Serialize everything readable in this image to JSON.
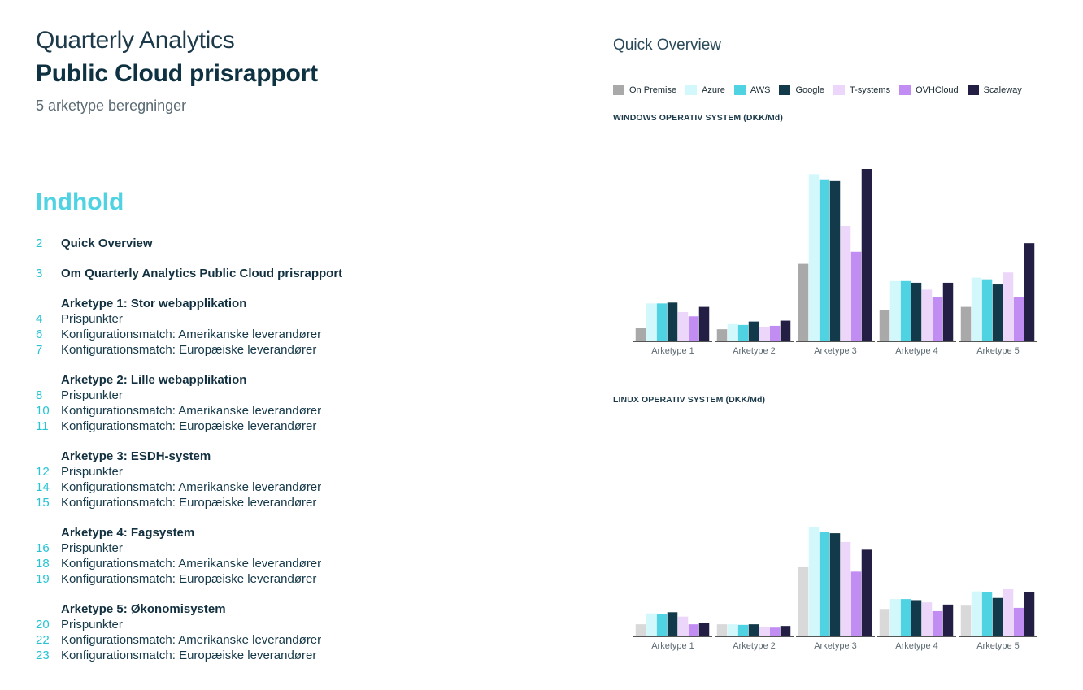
{
  "header": {
    "line1": "Quarterly Analytics",
    "line2": "Public Cloud prisrapport",
    "line3": "5 arketype beregninger"
  },
  "toc": {
    "title": "Indhold",
    "rows": [
      {
        "num": "2",
        "label": "Quick Overview",
        "bold": true,
        "gap": 0
      },
      {
        "num": "3",
        "label": "Om Quarterly Analytics Public Cloud prisrapport",
        "bold": true,
        "gap": 18
      },
      {
        "num": "",
        "label": "Arketype 1: Stor webapplikation",
        "bold": true,
        "gap": 18
      },
      {
        "num": "4",
        "label": "Prispunkter",
        "bold": false,
        "gap": 0
      },
      {
        "num": "6",
        "label": "Konfigurationsmatch: Amerikanske leverandører",
        "bold": false,
        "gap": 0
      },
      {
        "num": "7",
        "label": "Konfigurationsmatch: Europæiske leverandører",
        "bold": false,
        "gap": 0
      },
      {
        "num": "",
        "label": "Arketype 2: Lille webapplikation",
        "bold": true,
        "gap": 18
      },
      {
        "num": "8",
        "label": "Prispunkter",
        "bold": false,
        "gap": 0
      },
      {
        "num": "10",
        "label": "Konfigurationsmatch: Amerikanske leverandører",
        "bold": false,
        "gap": 0
      },
      {
        "num": "11",
        "label": "Konfigurationsmatch: Europæiske leverandører",
        "bold": false,
        "gap": 0
      },
      {
        "num": "",
        "label": "Arketype 3: ESDH-system",
        "bold": true,
        "gap": 18
      },
      {
        "num": "12",
        "label": "Prispunkter",
        "bold": false,
        "gap": 0
      },
      {
        "num": "14",
        "label": "Konfigurationsmatch: Amerikanske leverandører",
        "bold": false,
        "gap": 0
      },
      {
        "num": "15",
        "label": "Konfigurationsmatch: Europæiske leverandører",
        "bold": false,
        "gap": 0
      },
      {
        "num": "",
        "label": "Arketype 4: Fagsystem",
        "bold": true,
        "gap": 18
      },
      {
        "num": "16",
        "label": "Prispunkter",
        "bold": false,
        "gap": 0
      },
      {
        "num": "18",
        "label": "Konfigurationsmatch: Amerikanske leverandører",
        "bold": false,
        "gap": 0
      },
      {
        "num": "19",
        "label": "Konfigurationsmatch: Europæiske leverandører",
        "bold": false,
        "gap": 0
      },
      {
        "num": "",
        "label": "Arketype 5: Økonomisystem",
        "bold": true,
        "gap": 18
      },
      {
        "num": "20",
        "label": "Prispunkter",
        "bold": false,
        "gap": 0
      },
      {
        "num": "22",
        "label": "Konfigurationsmatch: Amerikanske leverandører",
        "bold": false,
        "gap": 0
      },
      {
        "num": "23",
        "label": "Konfigurationsmatch: Europæiske leverandører",
        "bold": false,
        "gap": 0
      }
    ]
  },
  "overview": {
    "title": "Quick Overview",
    "legend": [
      {
        "name": "On Premise",
        "color": "#a9a9a9"
      },
      {
        "name": "Azure",
        "color": "#d3f8fb"
      },
      {
        "name": "AWS",
        "color": "#4fd3e3"
      },
      {
        "name": "Google",
        "color": "#133a4a"
      },
      {
        "name": "T-systems",
        "color": "#ecd6fa"
      },
      {
        "name": "OVHCloud",
        "color": "#c28df2"
      },
      {
        "name": "Scaleway",
        "color": "#231e43"
      }
    ]
  },
  "chart_data": [
    {
      "type": "bar",
      "title": "WINDOWS OPERATIV SYSTEM (DKK/Md)",
      "categories": [
        "Arketype 1",
        "Arketype 2",
        "Arketype 3",
        "Arketype 4",
        "Arketype 5"
      ],
      "ylim": [
        0,
        100
      ],
      "series": [
        {
          "name": "On Premise",
          "color": "#a9a9a9",
          "values": [
            8,
            7,
            45,
            18,
            20
          ]
        },
        {
          "name": "Azure",
          "color": "#d3f8fb",
          "values": [
            22,
            10,
            97,
            35,
            37
          ]
        },
        {
          "name": "AWS",
          "color": "#4fd3e3",
          "values": [
            22,
            9.5,
            94,
            35,
            36
          ]
        },
        {
          "name": "Google",
          "color": "#133a4a",
          "values": [
            22.5,
            11.5,
            93,
            34,
            33
          ]
        },
        {
          "name": "T-systems",
          "color": "#ecd6fa",
          "values": [
            17,
            8.5,
            67,
            30,
            40
          ]
        },
        {
          "name": "OVHCloud",
          "color": "#c28df2",
          "values": [
            14.5,
            9,
            52,
            25.5,
            25.5
          ]
        },
        {
          "name": "Scaleway",
          "color": "#231e43",
          "values": [
            20,
            12,
            100,
            34,
            57
          ]
        }
      ]
    },
    {
      "type": "bar",
      "title": "LINUX  OPERATIV SYSTEM (DKK/Md)",
      "categories": [
        "Arketype 1",
        "Arketype 2",
        "Arketype 3",
        "Arketype 4",
        "Arketype 5"
      ],
      "ylim": [
        0,
        100
      ],
      "series": [
        {
          "name": "On Premise",
          "color": "#d9d9d9",
          "values": [
            11,
            11,
            63,
            25,
            28
          ]
        },
        {
          "name": "Azure",
          "color": "#d3f8fb",
          "values": [
            21,
            11,
            100,
            34,
            41
          ]
        },
        {
          "name": "AWS",
          "color": "#4fd3e3",
          "values": [
            20.5,
            10.5,
            95.5,
            34,
            40
          ]
        },
        {
          "name": "Google",
          "color": "#133a4a",
          "values": [
            22,
            11,
            94,
            33,
            35
          ]
        },
        {
          "name": "T-systems",
          "color": "#ecd6fa",
          "values": [
            18,
            8.5,
            86,
            31,
            43
          ]
        },
        {
          "name": "OVHCloud",
          "color": "#c28df2",
          "values": [
            11,
            8,
            59,
            23,
            26
          ]
        },
        {
          "name": "Scaleway",
          "color": "#231e43",
          "values": [
            12.5,
            9.5,
            79,
            29,
            40
          ]
        }
      ]
    }
  ]
}
